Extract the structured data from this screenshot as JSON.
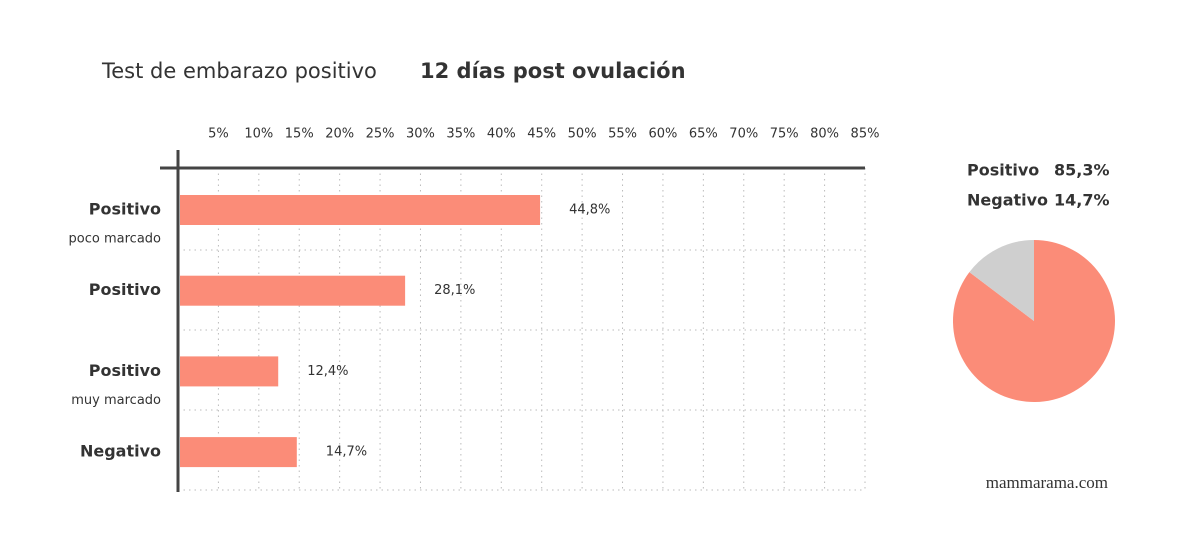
{
  "chart_data": [
    {
      "type": "bar",
      "title": "Test de embarazo positivo",
      "subtitle": "12 días post ovulación",
      "categories": [
        "Positivo",
        "Positivo",
        "Positivo",
        "Negativo"
      ],
      "category_notes": [
        "poco marcado",
        null,
        "muy marcado",
        null
      ],
      "values": [
        44.8,
        28.1,
        12.4,
        14.7
      ],
      "value_labels": [
        "44,8%",
        "28,1%",
        "12,4%",
        "14,7%"
      ],
      "color": "#fb8c78",
      "xlim": [
        0,
        85
      ],
      "xticks": [
        {
          "value": 5,
          "label": "5%"
        },
        {
          "value": 10,
          "label": "10%"
        },
        {
          "value": 15,
          "label": "15%"
        },
        {
          "value": 20,
          "label": "20%"
        },
        {
          "value": 25,
          "label": "25%"
        },
        {
          "value": 30,
          "label": "30%"
        },
        {
          "value": 35,
          "label": "35%"
        },
        {
          "value": 40,
          "label": "40%"
        },
        {
          "value": 45,
          "label": "45%"
        },
        {
          "value": 50,
          "label": "50%"
        },
        {
          "value": 55,
          "label": "55%"
        },
        {
          "value": 60,
          "label": "60%"
        },
        {
          "value": 65,
          "label": "65%"
        },
        {
          "value": 70,
          "label": "70%"
        },
        {
          "value": 75,
          "label": "75%"
        },
        {
          "value": 80,
          "label": "80%"
        },
        {
          "value": 85,
          "label": "85%"
        }
      ],
      "grid": true
    },
    {
      "type": "pie",
      "categories": [
        "Positivo",
        "Negativo"
      ],
      "values": [
        85.3,
        14.7
      ],
      "value_labels": [
        "85,3%",
        "14,7%"
      ],
      "colors": [
        "#fb8c78",
        "#cfcfcf"
      ]
    }
  ],
  "footer": "mammarama.com"
}
